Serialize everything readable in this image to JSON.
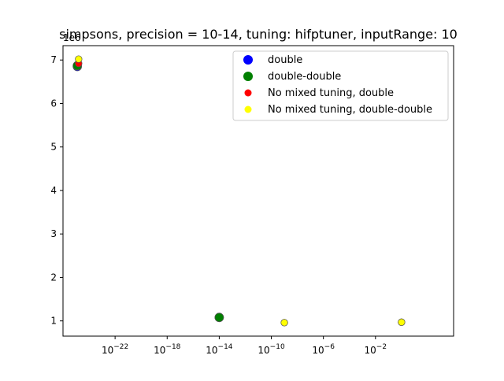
{
  "chart_data": {
    "type": "scatter",
    "title": "simpsons, precision = 10-14, tuning: hifptuner, inputRange: 10",
    "xlabel": "",
    "ylabel": "",
    "x_scale": "log",
    "x_range_log10": [
      -26.0,
      4.0
    ],
    "ylim": [
      0.65,
      7.33
    ],
    "y_offset_text": "1e6",
    "y_ticks": [
      1,
      2,
      3,
      4,
      5,
      6,
      7
    ],
    "x_ticks_log10": [
      -22,
      -18,
      -14,
      -10,
      -6,
      -2
    ],
    "x_tick_labels": [
      {
        "base": "10",
        "exp": "−22"
      },
      {
        "base": "10",
        "exp": "−18"
      },
      {
        "base": "10",
        "exp": "−14"
      },
      {
        "base": "10",
        "exp": "−10"
      },
      {
        "base": "10",
        "exp": "−6"
      },
      {
        "base": "10",
        "exp": "−2"
      }
    ],
    "grid": false,
    "legend_position": "top-right",
    "series": [
      {
        "name": "double",
        "color": "#0000ff",
        "marker": "large",
        "x_log10": [
          -24.9,
          -14.0
        ],
        "y": [
          6.85,
          1.08
        ]
      },
      {
        "name": "double-double",
        "color": "#008000",
        "marker": "large",
        "x_log10": [
          -24.9,
          -14.0
        ],
        "y": [
          6.87,
          1.08
        ]
      },
      {
        "name": "No mixed tuning, double",
        "color": "#ff0000",
        "marker": "small",
        "x_log10": [
          -24.8,
          -9.0,
          0.0
        ],
        "y": [
          6.92,
          0.96,
          0.97
        ]
      },
      {
        "name": "No mixed tuning, double-double",
        "color": "#ffff00",
        "marker": "small",
        "x_log10": [
          -24.8,
          -9.0,
          0.0
        ],
        "y": [
          7.02,
          0.96,
          0.97
        ]
      }
    ]
  }
}
